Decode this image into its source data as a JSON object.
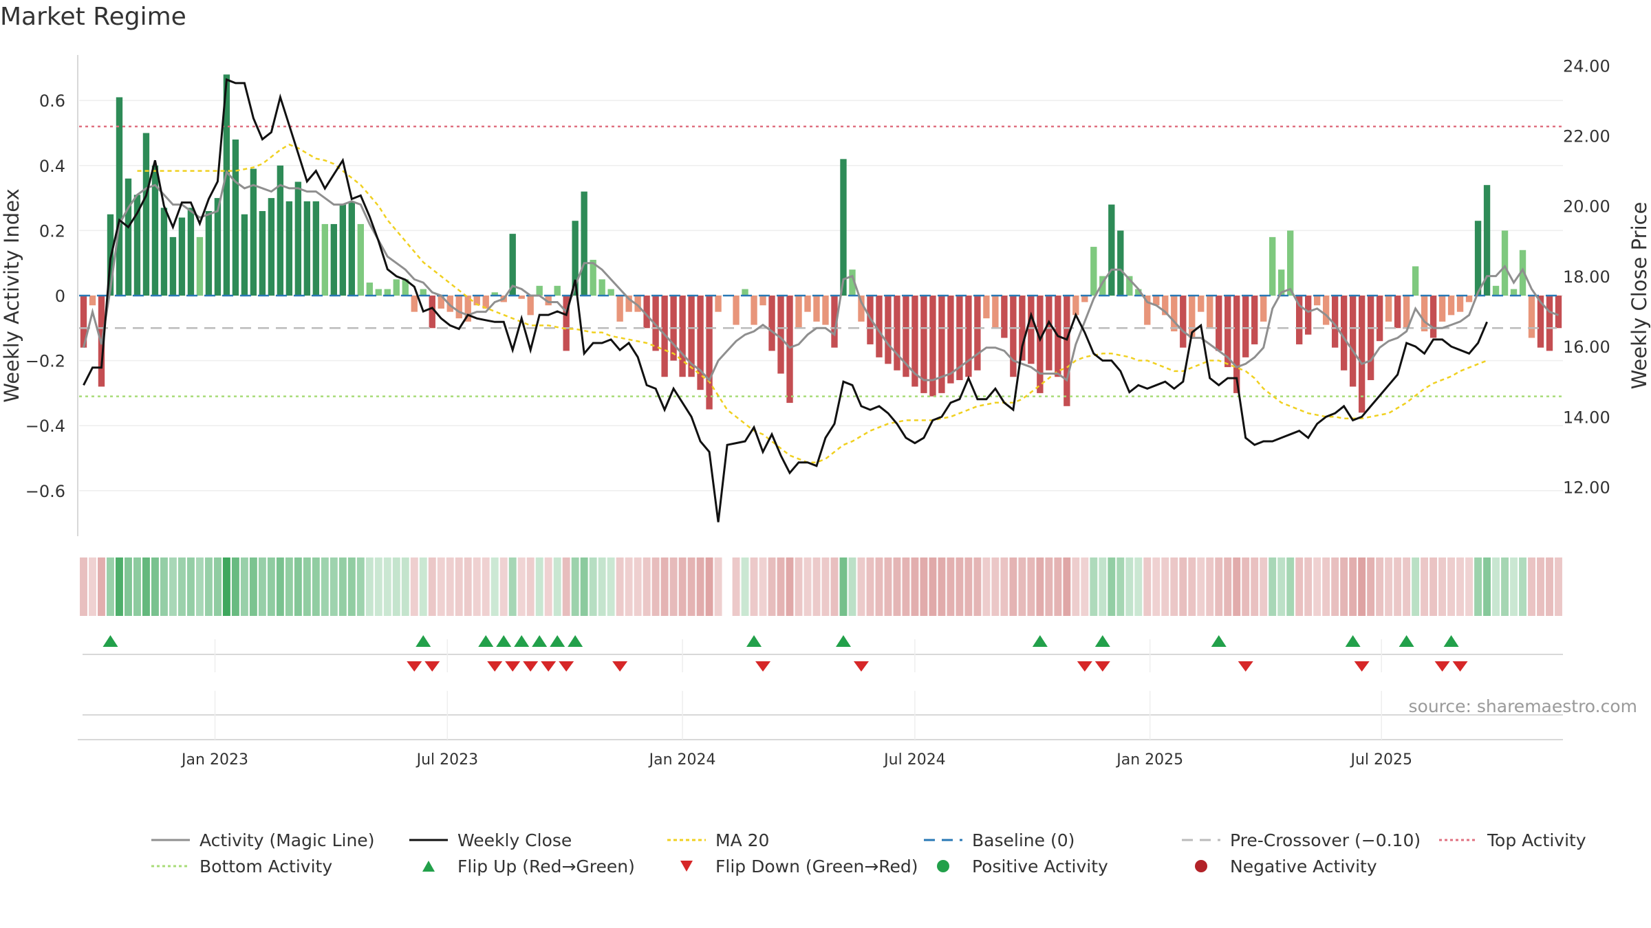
{
  "title": "Market Regime",
  "source": "source: sharemaestro.com",
  "colors": {
    "pos_strong": "#2e8b57",
    "pos_light": "#7fc97f",
    "neg_strong": "#c44e52",
    "neg_light": "#e8957a",
    "magic": "#8f8f8f",
    "close": "#111111",
    "ma20": "#f0d020",
    "baseline": "#2878b5",
    "pre": "#bbbbbb",
    "top": "#e07080",
    "bottom": "#a8dc78",
    "flip_up": "#22a04a",
    "flip_down": "#d62728"
  },
  "chart_data": {
    "type": "bar+line",
    "title": "Market Regime",
    "ylabel_left": "Weekly Activity Index",
    "ylabel_right": "Weekly Close Price",
    "ylim_left": [
      -0.74,
      0.74
    ],
    "ylim_right": [
      10.6,
      24.3
    ],
    "yticks_left": [
      {
        "v": 0.6,
        "label": "0.6"
      },
      {
        "v": 0.4,
        "label": "0.4"
      },
      {
        "v": 0.2,
        "label": "0.2"
      },
      {
        "v": 0,
        "label": "0"
      },
      {
        "v": -0.2,
        "label": "−0.2"
      },
      {
        "v": -0.4,
        "label": "−0.4"
      },
      {
        "v": -0.6,
        "label": "−0.6"
      }
    ],
    "yticks_right": [
      {
        "v": 24,
        "label": "24.00"
      },
      {
        "v": 22,
        "label": "22.00"
      },
      {
        "v": 20,
        "label": "20.00"
      },
      {
        "v": 18,
        "label": "18.00"
      },
      {
        "v": 16,
        "label": "16.00"
      },
      {
        "v": 14,
        "label": "14.00"
      },
      {
        "v": 12,
        "label": "12.00"
      }
    ],
    "xticks": [
      {
        "x": 15.2,
        "label": "Jan 2023"
      },
      {
        "x": 41.2,
        "label": "Jul 2023"
      },
      {
        "x": 67.5,
        "label": "Jan 2024"
      },
      {
        "x": 93.5,
        "label": "Jul 2024"
      },
      {
        "x": 119.8,
        "label": "Jan 2025"
      },
      {
        "x": 145.7,
        "label": "Jul 2025"
      }
    ],
    "reference_lines": {
      "top_activity": 0.52,
      "bottom_activity": -0.31,
      "pre_crossover": -0.1,
      "baseline": 0
    },
    "activity": [
      -0.16,
      -0.03,
      -0.28,
      0.25,
      0.61,
      0.36,
      0.31,
      0.5,
      0.4,
      0.27,
      0.18,
      0.24,
      0.27,
      0.18,
      0.26,
      0.3,
      0.68,
      0.48,
      0.25,
      0.39,
      0.26,
      0.3,
      0.4,
      0.29,
      0.35,
      0.29,
      0.29,
      0.22,
      0.22,
      0.28,
      0.29,
      0.22,
      0.04,
      0.02,
      0.02,
      0.05,
      0.05,
      -0.05,
      0.02,
      -0.1,
      -0.04,
      -0.05,
      -0.07,
      -0.08,
      -0.03,
      -0.04,
      0.01,
      -0.02,
      0.19,
      -0.01,
      -0.06,
      0.03,
      -0.03,
      0.03,
      -0.17,
      0.23,
      0.32,
      0.11,
      0.05,
      0.02,
      -0.08,
      -0.05,
      -0.05,
      -0.1,
      -0.17,
      -0.25,
      -0.2,
      -0.25,
      -0.25,
      -0.29,
      -0.35,
      -0.05,
      null,
      -0.09,
      0.02,
      -0.09,
      -0.03,
      -0.17,
      -0.24,
      -0.33,
      -0.1,
      -0.05,
      -0.08,
      -0.09,
      -0.16,
      0.42,
      0.08,
      -0.08,
      -0.15,
      -0.19,
      -0.21,
      -0.23,
      -0.25,
      -0.28,
      -0.3,
      -0.31,
      -0.3,
      -0.27,
      -0.26,
      -0.25,
      -0.23,
      -0.07,
      -0.1,
      -0.13,
      -0.25,
      -0.2,
      -0.21,
      -0.3,
      -0.23,
      -0.25,
      -0.34,
      -0.06,
      -0.02,
      0.15,
      0.06,
      0.28,
      0.2,
      0.06,
      0.02,
      -0.09,
      -0.03,
      -0.06,
      -0.11,
      -0.16,
      -0.13,
      -0.05,
      -0.1,
      -0.17,
      -0.22,
      -0.3,
      -0.19,
      -0.15,
      -0.08,
      0.18,
      0.08,
      0.2,
      -0.15,
      -0.12,
      -0.03,
      -0.09,
      -0.16,
      -0.23,
      -0.28,
      -0.36,
      -0.26,
      -0.14,
      -0.08,
      -0.1,
      -0.1,
      0.09,
      -0.11,
      -0.13,
      -0.08,
      -0.06,
      -0.05,
      -0.02,
      0.23,
      0.34,
      0.03,
      0.2,
      0.02,
      0.14,
      -0.13,
      -0.16,
      -0.17,
      -0.1
    ],
    "magic_line": [
      -0.16,
      -0.05,
      -0.15,
      0.02,
      0.22,
      0.27,
      0.31,
      0.33,
      0.34,
      0.31,
      0.28,
      0.28,
      0.26,
      0.24,
      0.25,
      0.26,
      0.38,
      0.35,
      0.33,
      0.34,
      0.33,
      0.32,
      0.34,
      0.33,
      0.33,
      0.32,
      0.32,
      0.3,
      0.28,
      0.28,
      0.29,
      0.28,
      0.22,
      0.17,
      0.12,
      0.1,
      0.08,
      0.05,
      0.04,
      0.01,
      0.0,
      -0.03,
      -0.05,
      -0.06,
      -0.05,
      -0.05,
      -0.02,
      -0.01,
      0.03,
      0.02,
      0.0,
      0.0,
      -0.02,
      -0.02,
      -0.05,
      0.03,
      0.1,
      0.1,
      0.08,
      0.05,
      0.02,
      -0.01,
      -0.03,
      -0.06,
      -0.09,
      -0.12,
      -0.15,
      -0.18,
      -0.21,
      -0.23,
      -0.26,
      -0.2,
      -0.17,
      -0.14,
      -0.12,
      -0.11,
      -0.09,
      -0.11,
      -0.13,
      -0.16,
      -0.15,
      -0.12,
      -0.1,
      -0.1,
      -0.12,
      0.05,
      0.06,
      -0.02,
      -0.07,
      -0.11,
      -0.15,
      -0.18,
      -0.21,
      -0.24,
      -0.26,
      -0.26,
      -0.25,
      -0.24,
      -0.22,
      -0.2,
      -0.18,
      -0.16,
      -0.16,
      -0.17,
      -0.2,
      -0.21,
      -0.22,
      -0.24,
      -0.24,
      -0.24,
      -0.26,
      -0.15,
      -0.08,
      -0.01,
      0.04,
      0.08,
      0.08,
      0.05,
      0.02,
      -0.02,
      -0.03,
      -0.05,
      -0.08,
      -0.11,
      -0.13,
      -0.13,
      -0.15,
      -0.17,
      -0.19,
      -0.22,
      -0.21,
      -0.19,
      -0.16,
      -0.04,
      0.01,
      0.02,
      -0.03,
      -0.05,
      -0.04,
      -0.06,
      -0.09,
      -0.13,
      -0.17,
      -0.21,
      -0.2,
      -0.16,
      -0.14,
      -0.13,
      -0.11,
      -0.04,
      -0.08,
      -0.1,
      -0.1,
      -0.09,
      -0.08,
      -0.06,
      0.01,
      0.06,
      0.06,
      0.09,
      0.04,
      0.08,
      0.02,
      -0.02,
      -0.05,
      -0.06
    ],
    "weekly_close": [
      14.9,
      15.4,
      15.4,
      18.5,
      19.6,
      19.4,
      19.8,
      20.3,
      21.3,
      20.0,
      19.4,
      20.1,
      20.1,
      19.5,
      20.2,
      20.7,
      23.6,
      23.5,
      23.5,
      22.5,
      21.9,
      22.1,
      23.1,
      22.3,
      21.5,
      20.7,
      21.0,
      20.5,
      20.9,
      21.3,
      20.2,
      20.3,
      19.7,
      19.0,
      18.2,
      18.0,
      17.9,
      17.7,
      17.0,
      17.1,
      16.8,
      16.6,
      16.5,
      16.9,
      16.8,
      16.75,
      16.7,
      16.7,
      15.9,
      16.8,
      15.9,
      16.9,
      16.9,
      17.0,
      16.9,
      17.9,
      15.8,
      16.1,
      16.1,
      16.2,
      15.9,
      16.1,
      15.7,
      14.9,
      14.8,
      14.2,
      14.8,
      14.4,
      14.0,
      13.3,
      13.0,
      11.0,
      13.2,
      13.25,
      13.3,
      13.7,
      13.0,
      13.5,
      12.9,
      12.4,
      12.7,
      12.7,
      12.6,
      13.4,
      13.8,
      15.0,
      14.9,
      14.3,
      14.2,
      14.3,
      14.1,
      13.8,
      13.4,
      13.25,
      13.4,
      13.9,
      14.0,
      14.4,
      14.5,
      15.1,
      14.5,
      14.5,
      14.8,
      14.4,
      14.2,
      16.0,
      16.9,
      16.2,
      16.7,
      16.3,
      16.2,
      16.9,
      16.4,
      15.8,
      15.6,
      15.6,
      15.3,
      14.7,
      14.9,
      14.8,
      14.9,
      15.0,
      14.8,
      15.0,
      16.4,
      16.6,
      15.1,
      14.9,
      15.1,
      15.1,
      13.4,
      13.2,
      13.3,
      13.3,
      13.4,
      13.5,
      13.6,
      13.4,
      13.8,
      14.0,
      14.1,
      14.3,
      13.9,
      14.0,
      14.3,
      14.6,
      14.9,
      15.2,
      16.1,
      16.0,
      15.8,
      16.2,
      16.2,
      16.0,
      15.9,
      15.8,
      16.1,
      16.7
    ],
    "ma20": [
      null,
      null,
      null,
      null,
      null,
      null,
      21.0,
      21.0,
      21.0,
      21.0,
      21.0,
      21.0,
      21.0,
      21.0,
      21.0,
      21.0,
      21.0,
      21.0,
      21.05,
      21.1,
      21.2,
      21.4,
      21.6,
      21.75,
      21.65,
      21.5,
      21.35,
      21.3,
      21.2,
      21.0,
      20.8,
      20.6,
      20.3,
      20.0,
      19.6,
      19.3,
      19.0,
      18.7,
      18.4,
      18.2,
      18.0,
      17.8,
      17.6,
      17.4,
      17.2,
      17.1,
      17.0,
      16.9,
      16.8,
      16.7,
      16.6,
      16.6,
      16.6,
      16.55,
      16.5,
      16.5,
      16.45,
      16.4,
      16.4,
      16.3,
      16.25,
      16.2,
      16.15,
      16.1,
      16.0,
      15.9,
      15.8,
      15.6,
      15.4,
      15.2,
      15.0,
      14.6,
      14.2,
      14.0,
      13.8,
      13.6,
      13.5,
      13.3,
      13.1,
      12.9,
      12.8,
      12.7,
      12.7,
      12.8,
      13.0,
      13.2,
      13.3,
      13.45,
      13.6,
      13.7,
      13.8,
      13.85,
      13.9,
      13.9,
      13.9,
      13.9,
      13.95,
      14.0,
      14.1,
      14.2,
      14.3,
      14.35,
      14.4,
      14.4,
      14.4,
      14.5,
      14.7,
      14.9,
      15.1,
      15.3,
      15.4,
      15.6,
      15.7,
      15.75,
      15.8,
      15.8,
      15.75,
      15.7,
      15.6,
      15.6,
      15.5,
      15.4,
      15.3,
      15.3,
      15.4,
      15.5,
      15.6,
      15.6,
      15.5,
      15.4,
      15.3,
      15.1,
      14.8,
      14.6,
      14.4,
      14.3,
      14.2,
      14.1,
      14.05,
      14.0,
      14.0,
      13.95,
      13.95,
      13.95,
      14.0,
      14.05,
      14.1,
      14.25,
      14.4,
      14.6,
      14.8,
      14.95,
      15.05,
      15.15,
      15.3,
      15.4,
      15.5,
      15.6
    ],
    "regime_strip": "one colored cell per week: green when activity > 0, red when activity < 0; darker shade for stronger activity",
    "flip_up_weeks": [
      3,
      38,
      45,
      47,
      49,
      51,
      53,
      55,
      75,
      85,
      107,
      114,
      127,
      142,
      148,
      153
    ],
    "flip_down_weeks": [
      37,
      39,
      46,
      48,
      50,
      52,
      54,
      60,
      76,
      87,
      112,
      114,
      130,
      143,
      152,
      154
    ]
  }
}
